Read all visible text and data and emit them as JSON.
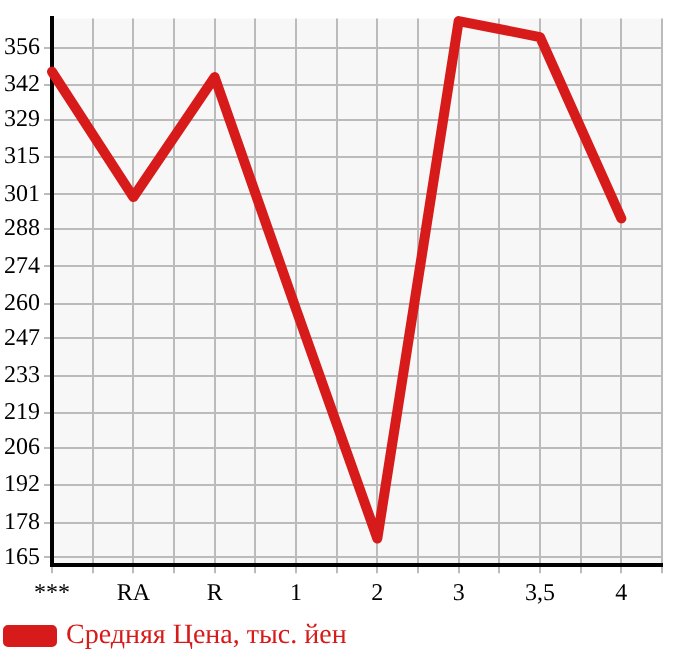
{
  "chart_data": {
    "type": "line",
    "categories": [
      "***",
      "RA",
      "R",
      "1",
      "2",
      "3",
      "3,5",
      "4"
    ],
    "series": [
      {
        "name": "Средняя Цена, тыс. йен",
        "color": "#d71a1a",
        "values": [
          347,
          300,
          345,
          258,
          172,
          366,
          360,
          292
        ]
      }
    ],
    "ylim": [
      162,
      367
    ],
    "yticks": [
      165,
      178,
      192,
      206,
      219,
      233,
      247,
      260,
      274,
      288,
      301,
      315,
      329,
      342,
      356
    ],
    "grid": true,
    "legend": "bottom left",
    "marker": "none",
    "line_style": "solid"
  }
}
